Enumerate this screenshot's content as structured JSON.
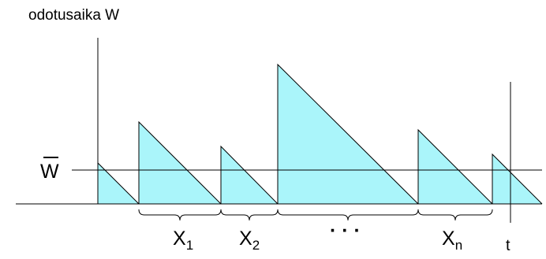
{
  "title": "odotusaika W",
  "mean_label": "W",
  "interval_labels": [
    {
      "base": "X",
      "sub": "1"
    },
    {
      "base": "X",
      "sub": "2"
    },
    {
      "base": "X",
      "sub": "n"
    }
  ],
  "ellipsis": "· · ·",
  "time_label": "t",
  "colors": {
    "fill": "#aaf5fa",
    "stroke": "#000000"
  }
}
